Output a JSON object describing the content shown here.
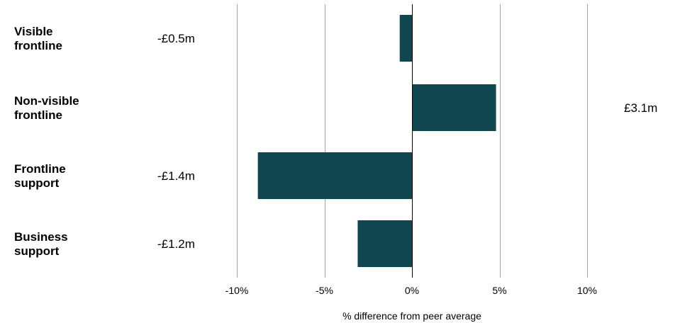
{
  "chart_data": {
    "type": "bar",
    "orientation": "horizontal",
    "categories": [
      [
        "Visible",
        "frontline"
      ],
      [
        "Non-visible",
        "frontline"
      ],
      [
        "Frontline",
        "support"
      ],
      [
        "Business",
        "support"
      ]
    ],
    "values": [
      -0.7,
      4.8,
      -8.8,
      -3.1
    ],
    "value_labels": [
      "-£0.5m",
      "£3.1m",
      "-£1.4m",
      "-£1.2m"
    ],
    "xlim": [
      -10,
      10
    ],
    "xticks": [
      -10,
      -5,
      0,
      5,
      10
    ],
    "xtick_labels": [
      "-10%",
      "-5%",
      "0%",
      "5%",
      "10%"
    ],
    "xlabel": "% difference from peer average",
    "ylabel": "",
    "title": "",
    "grid": true,
    "bar_color": "#0f4650"
  }
}
